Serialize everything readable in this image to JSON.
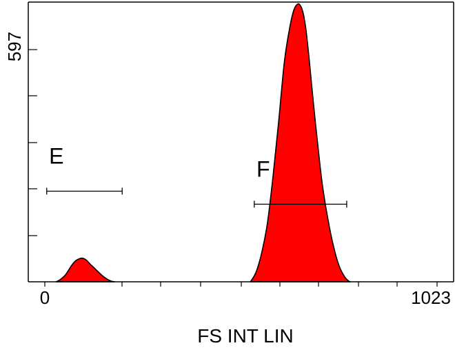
{
  "chart_data": {
    "type": "area",
    "title": "",
    "xlabel": "FS INT LIN",
    "ylabel": "",
    "xlim": [
      0,
      1023
    ],
    "ylim": [
      0,
      710
    ],
    "x_tick_labels": [
      {
        "value": 0,
        "label": "0"
      },
      {
        "value": 1023,
        "label": "1023"
      }
    ],
    "y_tick_labels": [
      {
        "value": 597,
        "label": "597"
      }
    ],
    "grid": false,
    "legend": "none",
    "fill_color": "#ff0000",
    "outline_color": "#000000",
    "series": [
      {
        "x": [
          30,
          40,
          55,
          70,
          80,
          90,
          100,
          110,
          120,
          130,
          145,
          160,
          175,
          185
        ],
        "y": [
          0,
          5,
          18,
          40,
          52,
          58,
          60,
          55,
          45,
          36,
          22,
          10,
          2,
          0
        ]
      },
      {
        "x": [
          545,
          560,
          575,
          590,
          605,
          620,
          635,
          650,
          660,
          670,
          678,
          685,
          692,
          700,
          710,
          722,
          735,
          750,
          765,
          780,
          795,
          805,
          810
        ],
        "y": [
          0,
          25,
          75,
          150,
          270,
          410,
          560,
          650,
          690,
          705,
          700,
          680,
          640,
          570,
          470,
          360,
          250,
          160,
          90,
          40,
          12,
          2,
          0
        ]
      }
    ],
    "gates": [
      {
        "label": "E",
        "x_start": 5,
        "x_end": 205,
        "y": 230
      },
      {
        "label": "F",
        "x_start": 555,
        "x_end": 800,
        "y": 197
      }
    ]
  }
}
